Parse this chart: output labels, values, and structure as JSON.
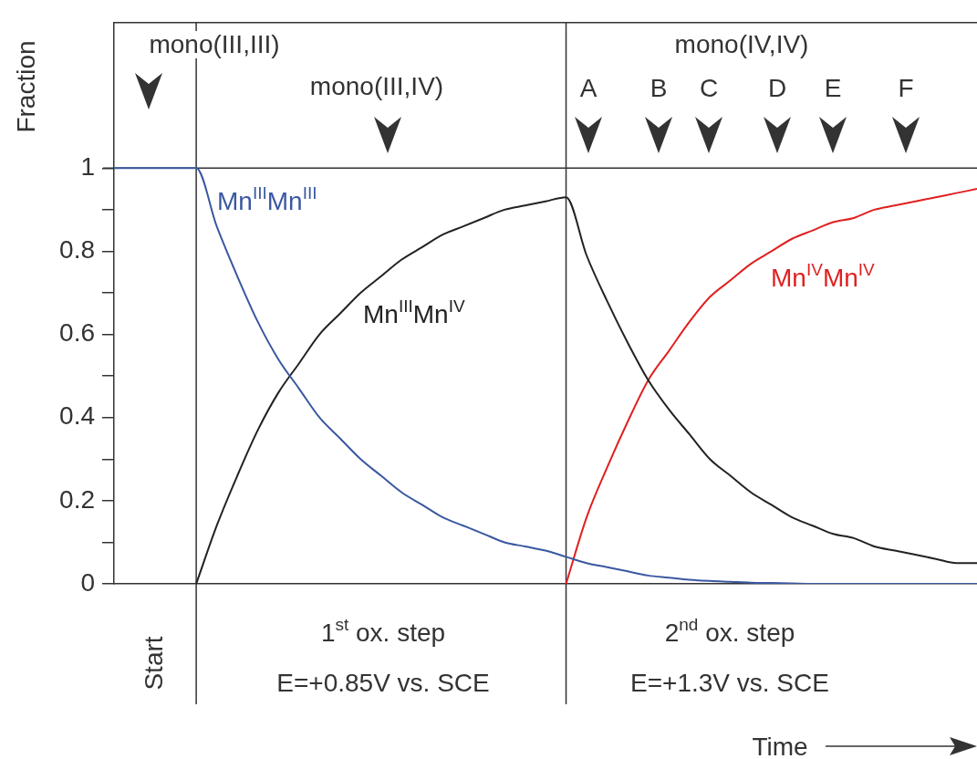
{
  "chart_data": {
    "type": "line",
    "ylabel": "Fraction",
    "categories": [
      null,
      null,
      null,
      null,
      null,
      null,
      null,
      null,
      null,
      null,
      null,
      null,
      null,
      null,
      null,
      null,
      null,
      null,
      null,
      null,
      null,
      null,
      null,
      null,
      null,
      null,
      null,
      null,
      null,
      null,
      null,
      null,
      null,
      null,
      null,
      null,
      null,
      null,
      null,
      null,
      null,
      null,
      null
    ],
    "series": [
      {
        "name": "Mn$^{III}$Mn$^{III}$",
        "color": "#3a58a0",
        "values": [
          1,
          1,
          1,
          1,
          1,
          0.86,
          0.74,
          0.63,
          0.54,
          0.47,
          0.4,
          0.35,
          0.3,
          0.26,
          0.22,
          0.19,
          0.16,
          0.14,
          0.12,
          0.1,
          0.09,
          0.08,
          0.065,
          0.05,
          0.04,
          0.03,
          0.02,
          0.015,
          0.01,
          0.007,
          0.005,
          0.003,
          0.002,
          0.001,
          0,
          0,
          0,
          0,
          0,
          0,
          0,
          0,
          0
        ]
      },
      {
        "name": "Mn$^{III}$Mn$^{IV}$",
        "color": "#222222",
        "values": [
          null,
          null,
          null,
          null,
          0,
          0.14,
          0.26,
          0.37,
          0.46,
          0.53,
          0.6,
          0.65,
          0.7,
          0.74,
          0.78,
          0.81,
          0.84,
          0.86,
          0.88,
          0.9,
          0.91,
          0.92,
          0.93,
          0.79,
          0.68,
          0.58,
          0.49,
          0.42,
          0.36,
          0.3,
          0.26,
          0.22,
          0.19,
          0.16,
          0.14,
          0.12,
          0.11,
          0.09,
          0.08,
          0.07,
          0.06,
          0.05,
          0.05
        ]
      },
      {
        "name": "Mn$^{IV}$Mn$^{IV}$",
        "color": "#e02020",
        "values": [
          null,
          null,
          null,
          null,
          null,
          null,
          null,
          null,
          null,
          null,
          null,
          null,
          null,
          null,
          null,
          null,
          null,
          null,
          null,
          null,
          null,
          null,
          0,
          0.16,
          0.28,
          0.39,
          0.49,
          0.56,
          0.63,
          0.69,
          0.73,
          0.77,
          0.8,
          0.83,
          0.85,
          0.87,
          0.88,
          0.9,
          0.91,
          0.92,
          0.93,
          0.94,
          0.95
        ]
      }
    ],
    "ylim": [
      0,
      1.35
    ],
    "yticks": [
      0,
      {
        "value": 0.1,
        "label": null
      },
      {
        "value": 0.2,
        "label": "0.2"
      },
      {
        "value": 0.3,
        "label": null
      },
      {
        "value": 0.4,
        "label": "0.4"
      },
      {
        "value": 0.5,
        "label": null
      },
      {
        "value": 0.6,
        "label": "0.6"
      },
      {
        "value": 0.7,
        "label": null
      },
      {
        "value": 0.8,
        "label": "0.8"
      },
      {
        "value": 0.9,
        "label": null
      },
      1
    ],
    "tick_labels": "y",
    "ref_lines": [
      {
        "axis": "y",
        "value": 1
      }
    ],
    "annotations": [
      "mono(III,III)",
      "mono(III,IV)",
      "mono(IV,IV)",
      "A",
      "B",
      "C",
      "D",
      "E",
      "F",
      "Start",
      "1$^{st}$ ox. step",
      "E=+0.85V vs. SCE",
      "2$^{nd}$ ox. step",
      "E=+1.3V vs. SCE",
      "Time"
    ],
    "grid": false,
    "legend": false,
    "marker": "none",
    "line_style": "solid"
  }
}
